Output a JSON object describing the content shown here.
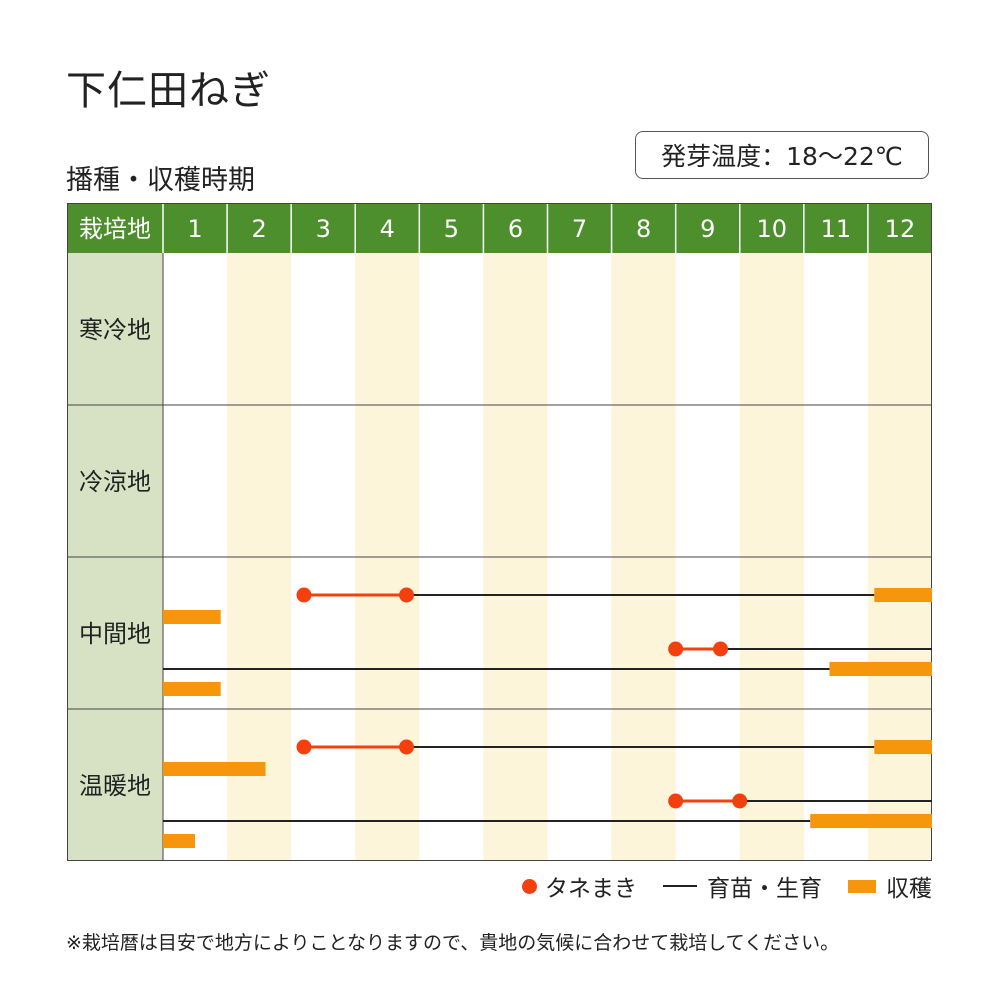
{
  "header": {
    "title": "下仁田ねぎ",
    "subtitle": "播種・収穫時期",
    "temperature": "発芽温度：18〜22℃"
  },
  "colors": {
    "header_green": "#4c8f2c",
    "region_bg": "#d7e2c4",
    "stripe": "#fdf5d9",
    "sowing_red": "#f4400f",
    "harvest_orange": "#f5960c",
    "growth_line": "#222222"
  },
  "chart_data": {
    "type": "table",
    "corner_label": "栽培地",
    "months": [
      "1",
      "2",
      "3",
      "4",
      "5",
      "6",
      "7",
      "8",
      "9",
      "10",
      "11",
      "12"
    ],
    "regions": [
      {
        "name": "寒冷地",
        "lanes": []
      },
      {
        "name": "冷涼地",
        "lanes": []
      },
      {
        "name": "中間地",
        "lanes": [
          {
            "sowing": [
              3.2,
              4.8
            ],
            "growth": [
              4.8,
              12.1
            ],
            "harvest": [
              [
                12.1,
                13.0
              ]
            ]
          },
          {
            "harvest": [
              [
                1.0,
                1.9
              ]
            ]
          },
          {
            "sowing": [
              9.0,
              9.7
            ],
            "growth": [
              9.7,
              13.0
            ]
          },
          {
            "growth": [
              1.0,
              11.4
            ],
            "harvest": [
              [
                11.4,
                13.0
              ]
            ]
          },
          {
            "harvest": [
              [
                1.0,
                1.9
              ]
            ]
          }
        ]
      },
      {
        "name": "温暖地",
        "lanes": [
          {
            "sowing": [
              3.2,
              4.8
            ],
            "growth": [
              4.8,
              12.1
            ],
            "harvest": [
              [
                12.1,
                13.0
              ]
            ]
          },
          {
            "harvest": [
              [
                1.0,
                2.6
              ]
            ]
          },
          {
            "sowing": [
              9.0,
              10.0
            ],
            "growth": [
              10.0,
              13.0
            ]
          },
          {
            "growth": [
              1.0,
              11.1
            ],
            "harvest": [
              [
                11.1,
                13.0
              ]
            ]
          },
          {
            "harvest": [
              [
                1.0,
                1.5
              ]
            ]
          }
        ]
      }
    ]
  },
  "legend": {
    "sowing": "タネまき",
    "growth": "育苗・生育",
    "harvest": "収穫"
  },
  "note": "※栽培暦は目安で地方によりことなりますので、貴地の気候に合わせて栽培してください。"
}
